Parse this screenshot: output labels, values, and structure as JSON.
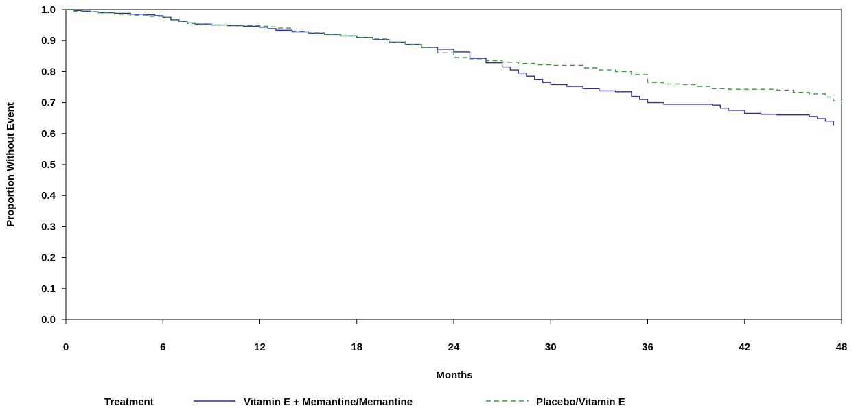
{
  "chart_data": {
    "type": "line",
    "xlabel": "Months",
    "ylabel": "Proportion Without Event",
    "xlim": [
      0,
      48
    ],
    "ylim": [
      0.0,
      1.0
    ],
    "xticks": [
      0,
      6,
      12,
      18,
      24,
      30,
      36,
      42,
      48
    ],
    "yticks": [
      0.0,
      0.1,
      0.2,
      0.3,
      0.4,
      0.5,
      0.6,
      0.7,
      0.8,
      0.9,
      1.0
    ],
    "ytick_labels": [
      "0.0",
      "0.1",
      "0.2",
      "0.3",
      "0.4",
      "0.5",
      "0.6",
      "0.7",
      "0.8",
      "0.9",
      "1.0"
    ],
    "grid": false,
    "legend": {
      "title": "Treatment",
      "position": "bottom"
    },
    "series": [
      {
        "name": "Vitamin E + Memantine/Memantine",
        "color": "#2b2bb5",
        "style": "solid",
        "x": [
          0,
          0.5,
          1,
          1.5,
          2,
          3,
          4,
          5,
          5.5,
          6,
          6.5,
          7,
          7.5,
          8,
          9,
          10,
          11,
          12,
          12.5,
          13,
          14,
          15,
          16,
          17,
          18,
          19,
          20,
          21,
          22,
          23,
          24,
          25,
          26,
          27,
          27.5,
          28,
          28.5,
          29,
          29.5,
          30,
          31,
          32,
          33,
          34,
          35,
          35.5,
          36,
          37,
          38,
          39,
          40,
          40.5,
          41,
          42,
          43,
          44,
          45,
          46,
          46.5,
          47,
          47.5
        ],
        "y": [
          1.0,
          0.997,
          0.995,
          0.993,
          0.99,
          0.988,
          0.985,
          0.983,
          0.98,
          0.975,
          0.967,
          0.962,
          0.957,
          0.953,
          0.95,
          0.948,
          0.946,
          0.943,
          0.938,
          0.933,
          0.928,
          0.924,
          0.92,
          0.915,
          0.91,
          0.903,
          0.895,
          0.888,
          0.878,
          0.872,
          0.863,
          0.843,
          0.828,
          0.815,
          0.805,
          0.795,
          0.785,
          0.775,
          0.765,
          0.758,
          0.752,
          0.745,
          0.738,
          0.735,
          0.72,
          0.71,
          0.7,
          0.695,
          0.695,
          0.695,
          0.692,
          0.682,
          0.675,
          0.665,
          0.662,
          0.66,
          0.66,
          0.655,
          0.648,
          0.64,
          0.625
        ]
      },
      {
        "name": "Placebo/Vitamin E",
        "color": "#3a9a3a",
        "style": "dashed",
        "x": [
          0,
          0.5,
          1,
          2,
          3,
          4,
          5,
          6,
          6.5,
          7,
          7.5,
          8,
          9,
          10,
          11,
          12,
          12.5,
          13,
          14,
          15,
          16,
          17,
          18,
          19,
          20,
          21,
          22,
          23,
          24,
          25,
          26,
          27,
          28,
          29,
          30,
          31,
          32,
          33,
          34,
          35,
          36,
          37,
          38,
          39,
          40,
          41,
          42,
          43,
          44,
          45,
          46,
          47,
          47.5,
          48
        ],
        "y": [
          1.0,
          0.995,
          0.993,
          0.99,
          0.985,
          0.982,
          0.978,
          0.975,
          0.968,
          0.962,
          0.955,
          0.952,
          0.95,
          0.949,
          0.948,
          0.946,
          0.944,
          0.94,
          0.93,
          0.925,
          0.92,
          0.915,
          0.91,
          0.905,
          0.895,
          0.888,
          0.878,
          0.86,
          0.845,
          0.838,
          0.835,
          0.83,
          0.826,
          0.822,
          0.82,
          0.82,
          0.812,
          0.805,
          0.8,
          0.79,
          0.765,
          0.76,
          0.758,
          0.752,
          0.745,
          0.743,
          0.743,
          0.743,
          0.74,
          0.733,
          0.728,
          0.718,
          0.705,
          0.69
        ]
      }
    ]
  }
}
